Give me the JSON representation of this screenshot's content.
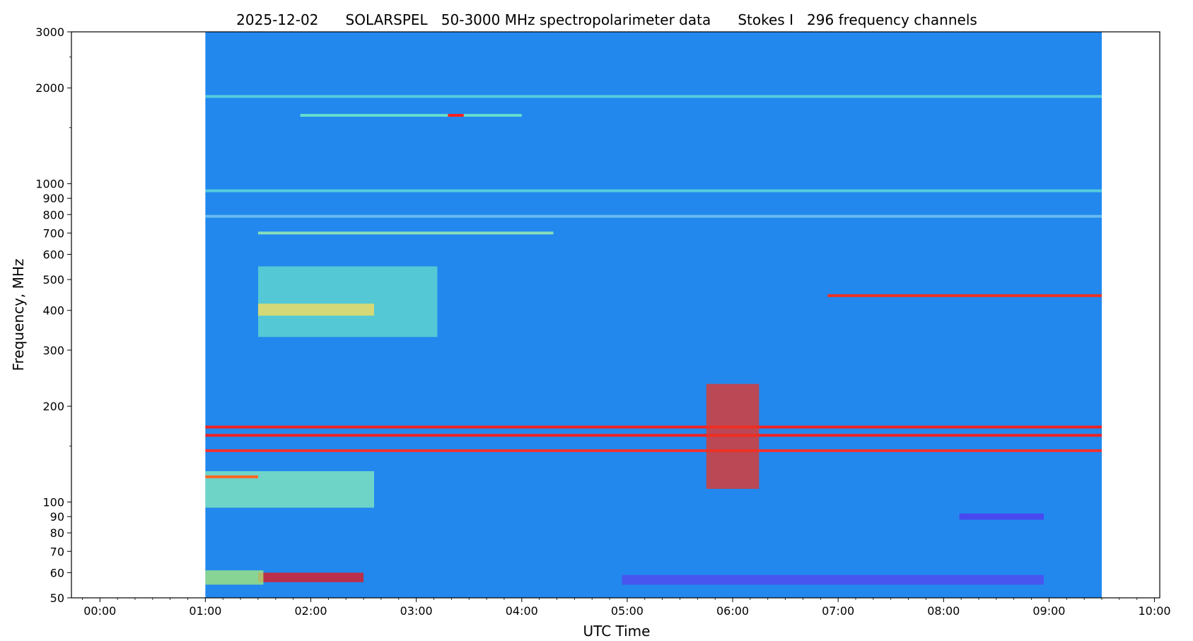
{
  "chart_data": {
    "type": "heatmap",
    "title": "2025-12-02      SOLARSPEL   50-3000 MHz spectropolarimeter data      Stokes I   296 frequency channels",
    "xlabel": "UTC Time",
    "ylabel": "Frequency, MHz",
    "xlim_hours": [
      -0.27,
      10.05
    ],
    "ylim": [
      50,
      3000
    ],
    "yscale": "log",
    "data_extent_hours": [
      1.0,
      9.5
    ],
    "x_ticks": [
      {
        "value": 0,
        "label": "00:00"
      },
      {
        "value": 1,
        "label": "01:00"
      },
      {
        "value": 2,
        "label": "02:00"
      },
      {
        "value": 3,
        "label": "03:00"
      },
      {
        "value": 4,
        "label": "04:00"
      },
      {
        "value": 5,
        "label": "05:00"
      },
      {
        "value": 6,
        "label": "06:00"
      },
      {
        "value": 7,
        "label": "07:00"
      },
      {
        "value": 8,
        "label": "08:00"
      },
      {
        "value": 9,
        "label": "09:00"
      },
      {
        "value": 10,
        "label": "10:00"
      }
    ],
    "y_ticks": [
      {
        "value": 50,
        "label": "50"
      },
      {
        "value": 60,
        "label": "60"
      },
      {
        "value": 70,
        "label": "70"
      },
      {
        "value": 80,
        "label": "80"
      },
      {
        "value": 90,
        "label": "90"
      },
      {
        "value": 100,
        "label": "100"
      },
      {
        "value": 200,
        "label": "200"
      },
      {
        "value": 300,
        "label": "300"
      },
      {
        "value": 400,
        "label": "400"
      },
      {
        "value": 500,
        "label": "500"
      },
      {
        "value": 600,
        "label": "600"
      },
      {
        "value": 700,
        "label": "700"
      },
      {
        "value": 800,
        "label": "800"
      },
      {
        "value": 900,
        "label": "900"
      },
      {
        "value": 1000,
        "label": "1000"
      },
      {
        "value": 2000,
        "label": "2000"
      },
      {
        "value": 3000,
        "label": "3000"
      }
    ],
    "y_minor_ticks": [
      150,
      1500,
      2500
    ],
    "colormap": "rainbow",
    "background_color": "#2288ee",
    "features": [
      {
        "kind": "band",
        "t0": 1.0,
        "t1": 9.5,
        "f": 1880,
        "color": "#55ccdd",
        "level": "enhanced"
      },
      {
        "kind": "band",
        "t0": 1.9,
        "t1": 4.0,
        "f": 1640,
        "color": "#66ddcc",
        "level": "enhanced"
      },
      {
        "kind": "spot",
        "t0": 3.3,
        "t1": 3.45,
        "f": 1640,
        "color": "#ff2020",
        "level": "saturated"
      },
      {
        "kind": "band",
        "t0": 1.0,
        "t1": 9.5,
        "f": 950,
        "color": "#55ccdd",
        "level": "enhanced"
      },
      {
        "kind": "band",
        "t0": 1.0,
        "t1": 9.5,
        "f": 790,
        "color": "#66bbee",
        "level": "enhanced"
      },
      {
        "kind": "band",
        "t0": 1.5,
        "t1": 4.3,
        "f": 700,
        "color": "#88ddbb",
        "level": "enhanced"
      },
      {
        "kind": "band",
        "t0": 6.9,
        "t1": 9.5,
        "f": 445,
        "color": "#ee3322",
        "level": "saturated"
      },
      {
        "kind": "burst",
        "t0": 1.5,
        "t1": 3.2,
        "f0": 330,
        "f1": 550,
        "color": "#66ddcc",
        "level": "type-III storm"
      },
      {
        "kind": "burst",
        "t0": 1.5,
        "t1": 2.6,
        "f0": 385,
        "f1": 420,
        "color": "#ffdd55",
        "level": "strong"
      },
      {
        "kind": "band",
        "t0": 1.0,
        "t1": 9.5,
        "f": 172,
        "color": "#ee2222",
        "level": "saturated (RFI)"
      },
      {
        "kind": "band",
        "t0": 1.0,
        "t1": 9.5,
        "f": 162,
        "color": "#ee2222",
        "level": "saturated (RFI)"
      },
      {
        "kind": "band",
        "t0": 1.0,
        "t1": 9.5,
        "f": 145,
        "color": "#ee3333",
        "level": "intermittent"
      },
      {
        "kind": "block",
        "t0": 1.0,
        "t1": 2.6,
        "f0": 96,
        "f1": 125,
        "color": "#88eebb",
        "level": "enhanced"
      },
      {
        "kind": "band",
        "t0": 1.0,
        "t1": 1.5,
        "f": 120,
        "color": "#ff6622",
        "level": "strong"
      },
      {
        "kind": "block",
        "t0": 1.5,
        "t1": 2.5,
        "f0": 56,
        "f1": 60,
        "color": "#ee1111",
        "level": "saturated"
      },
      {
        "kind": "block",
        "t0": 1.0,
        "t1": 1.55,
        "f0": 55,
        "f1": 61,
        "color": "#aaee77",
        "level": "strong"
      },
      {
        "kind": "block",
        "t0": 5.75,
        "t1": 6.25,
        "f0": 110,
        "f1": 235,
        "color": "#ee3322",
        "level": "burst cluster"
      },
      {
        "kind": "block",
        "t0": 4.95,
        "t1": 8.95,
        "f0": 55,
        "f1": 59,
        "color": "#5544ee",
        "level": "depressed"
      },
      {
        "kind": "block",
        "t0": 8.15,
        "t1": 8.95,
        "f0": 88,
        "f1": 92,
        "color": "#5533ee",
        "level": "depressed"
      }
    ]
  }
}
